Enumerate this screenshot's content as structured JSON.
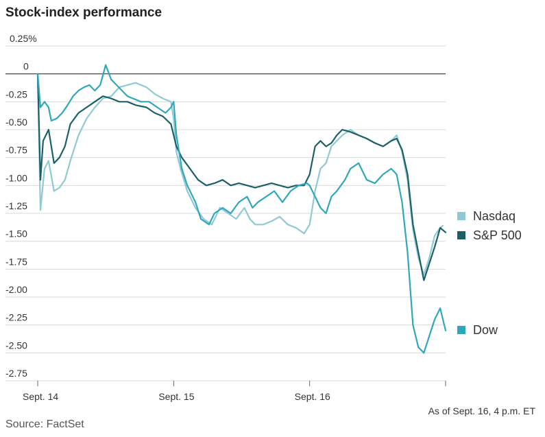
{
  "title": "Stock-index performance",
  "source": "Source: FactSet",
  "footnote": "As of Sept. 16, 4 p.m. ET",
  "chart_data": {
    "type": "line",
    "ylim": [
      -2.75,
      0.25
    ],
    "y_ticks": [
      0.25,
      0,
      -0.25,
      -0.5,
      -0.75,
      -1.0,
      -1.25,
      -1.5,
      -1.75,
      -2.0,
      -2.25,
      -2.5,
      -2.75
    ],
    "y_tick_labels": [
      "0.25%",
      "0",
      "-0.25",
      "-0.50",
      "-0.75",
      "-1.00",
      "-1.25",
      "-1.50",
      "-1.75",
      "-2.00",
      "-2.25",
      "-2.50",
      "-2.75"
    ],
    "xlim": [
      0,
      3
    ],
    "x_ticks": [
      0,
      1,
      2,
      3
    ],
    "x_tick_labels": [
      "Sept. 14",
      "Sept. 15",
      "Sept. 16",
      ""
    ],
    "legend_position": "right",
    "series": [
      {
        "name": "Nasdaq",
        "color": "#8fc9d4",
        "points": [
          [
            0,
            0
          ],
          [
            0.02,
            -1.22
          ],
          [
            0.05,
            -0.85
          ],
          [
            0.08,
            -0.78
          ],
          [
            0.12,
            -1.05
          ],
          [
            0.16,
            -1.02
          ],
          [
            0.2,
            -0.95
          ],
          [
            0.24,
            -0.78
          ],
          [
            0.3,
            -0.55
          ],
          [
            0.36,
            -0.4
          ],
          [
            0.42,
            -0.3
          ],
          [
            0.48,
            -0.22
          ],
          [
            0.54,
            -0.2
          ],
          [
            0.6,
            -0.12
          ],
          [
            0.66,
            -0.1
          ],
          [
            0.72,
            -0.08
          ],
          [
            0.8,
            -0.12
          ],
          [
            0.86,
            -0.18
          ],
          [
            0.92,
            -0.22
          ],
          [
            0.98,
            -0.25
          ],
          [
            1.0,
            -0.4
          ],
          [
            1.02,
            -0.7
          ],
          [
            1.05,
            -0.85
          ],
          [
            1.1,
            -1.05
          ],
          [
            1.16,
            -1.2
          ],
          [
            1.22,
            -1.3
          ],
          [
            1.28,
            -1.35
          ],
          [
            1.34,
            -1.2
          ],
          [
            1.4,
            -1.25
          ],
          [
            1.46,
            -1.3
          ],
          [
            1.52,
            -1.2
          ],
          [
            1.56,
            -1.3
          ],
          [
            1.6,
            -1.35
          ],
          [
            1.66,
            -1.35
          ],
          [
            1.72,
            -1.32
          ],
          [
            1.78,
            -1.28
          ],
          [
            1.84,
            -1.35
          ],
          [
            1.9,
            -1.38
          ],
          [
            1.96,
            -1.43
          ],
          [
            2.0,
            -1.35
          ],
          [
            2.04,
            -1.05
          ],
          [
            2.08,
            -0.85
          ],
          [
            2.12,
            -0.8
          ],
          [
            2.16,
            -0.65
          ],
          [
            2.2,
            -0.6
          ],
          [
            2.24,
            -0.55
          ],
          [
            2.3,
            -0.5
          ],
          [
            2.36,
            -0.55
          ],
          [
            2.42,
            -0.58
          ],
          [
            2.48,
            -0.62
          ],
          [
            2.54,
            -0.65
          ],
          [
            2.6,
            -0.6
          ],
          [
            2.64,
            -0.55
          ],
          [
            2.68,
            -0.7
          ],
          [
            2.72,
            -0.95
          ],
          [
            2.76,
            -1.4
          ],
          [
            2.8,
            -1.65
          ],
          [
            2.84,
            -1.8
          ],
          [
            2.88,
            -1.65
          ],
          [
            2.92,
            -1.45
          ],
          [
            2.96,
            -1.38
          ],
          [
            2.98,
            -1.36
          ]
        ]
      },
      {
        "name": "S&P 500",
        "color": "#1b5f69",
        "points": [
          [
            0,
            0
          ],
          [
            0.02,
            -0.95
          ],
          [
            0.04,
            -0.6
          ],
          [
            0.08,
            -0.5
          ],
          [
            0.12,
            -0.8
          ],
          [
            0.16,
            -0.75
          ],
          [
            0.2,
            -0.65
          ],
          [
            0.24,
            -0.45
          ],
          [
            0.3,
            -0.35
          ],
          [
            0.36,
            -0.3
          ],
          [
            0.42,
            -0.25
          ],
          [
            0.48,
            -0.2
          ],
          [
            0.54,
            -0.22
          ],
          [
            0.6,
            -0.25
          ],
          [
            0.66,
            -0.25
          ],
          [
            0.72,
            -0.28
          ],
          [
            0.8,
            -0.3
          ],
          [
            0.86,
            -0.35
          ],
          [
            0.92,
            -0.38
          ],
          [
            0.98,
            -0.45
          ],
          [
            1.0,
            -0.55
          ],
          [
            1.02,
            -0.65
          ],
          [
            1.06,
            -0.75
          ],
          [
            1.12,
            -0.85
          ],
          [
            1.18,
            -0.95
          ],
          [
            1.24,
            -1.0
          ],
          [
            1.3,
            -0.98
          ],
          [
            1.36,
            -0.95
          ],
          [
            1.42,
            -1.0
          ],
          [
            1.48,
            -0.98
          ],
          [
            1.54,
            -1.0
          ],
          [
            1.6,
            -1.02
          ],
          [
            1.66,
            -1.0
          ],
          [
            1.72,
            -0.98
          ],
          [
            1.78,
            -1.0
          ],
          [
            1.84,
            -1.02
          ],
          [
            1.9,
            -1.0
          ],
          [
            1.96,
            -1.0
          ],
          [
            2.0,
            -0.9
          ],
          [
            2.04,
            -0.65
          ],
          [
            2.08,
            -0.6
          ],
          [
            2.12,
            -0.65
          ],
          [
            2.16,
            -0.62
          ],
          [
            2.2,
            -0.55
          ],
          [
            2.24,
            -0.5
          ],
          [
            2.3,
            -0.52
          ],
          [
            2.36,
            -0.55
          ],
          [
            2.42,
            -0.58
          ],
          [
            2.48,
            -0.62
          ],
          [
            2.54,
            -0.65
          ],
          [
            2.6,
            -0.6
          ],
          [
            2.64,
            -0.58
          ],
          [
            2.68,
            -0.68
          ],
          [
            2.72,
            -0.9
          ],
          [
            2.76,
            -1.35
          ],
          [
            2.8,
            -1.6
          ],
          [
            2.84,
            -1.85
          ],
          [
            2.88,
            -1.7
          ],
          [
            2.92,
            -1.55
          ],
          [
            2.96,
            -1.38
          ],
          [
            3.0,
            -1.42
          ]
        ]
      },
      {
        "name": "Dow",
        "color": "#2ea7bd",
        "points": [
          [
            0,
            0
          ],
          [
            0.02,
            -0.3
          ],
          [
            0.05,
            -0.25
          ],
          [
            0.08,
            -0.3
          ],
          [
            0.1,
            -0.42
          ],
          [
            0.14,
            -0.4
          ],
          [
            0.18,
            -0.35
          ],
          [
            0.22,
            -0.28
          ],
          [
            0.26,
            -0.2
          ],
          [
            0.3,
            -0.15
          ],
          [
            0.34,
            -0.12
          ],
          [
            0.38,
            -0.1
          ],
          [
            0.42,
            -0.15
          ],
          [
            0.46,
            -0.1
          ],
          [
            0.5,
            0.08
          ],
          [
            0.54,
            -0.05
          ],
          [
            0.58,
            -0.1
          ],
          [
            0.62,
            -0.15
          ],
          [
            0.66,
            -0.2
          ],
          [
            0.7,
            -0.22
          ],
          [
            0.76,
            -0.25
          ],
          [
            0.82,
            -0.25
          ],
          [
            0.88,
            -0.3
          ],
          [
            0.94,
            -0.35
          ],
          [
            0.98,
            -0.3
          ],
          [
            1.0,
            -0.25
          ],
          [
            1.02,
            -0.55
          ],
          [
            1.06,
            -0.85
          ],
          [
            1.1,
            -1.0
          ],
          [
            1.16,
            -1.15
          ],
          [
            1.2,
            -1.3
          ],
          [
            1.26,
            -1.35
          ],
          [
            1.3,
            -1.25
          ],
          [
            1.36,
            -1.2
          ],
          [
            1.42,
            -1.25
          ],
          [
            1.48,
            -1.15
          ],
          [
            1.54,
            -1.1
          ],
          [
            1.58,
            -1.2
          ],
          [
            1.62,
            -1.15
          ],
          [
            1.68,
            -1.1
          ],
          [
            1.74,
            -1.05
          ],
          [
            1.8,
            -1.15
          ],
          [
            1.86,
            -1.05
          ],
          [
            1.92,
            -1.0
          ],
          [
            1.98,
            -0.98
          ],
          [
            2.0,
            -1.0
          ],
          [
            2.04,
            -1.1
          ],
          [
            2.08,
            -1.2
          ],
          [
            2.12,
            -1.25
          ],
          [
            2.16,
            -1.1
          ],
          [
            2.2,
            -1.05
          ],
          [
            2.26,
            -0.95
          ],
          [
            2.3,
            -0.85
          ],
          [
            2.36,
            -0.8
          ],
          [
            2.42,
            -0.95
          ],
          [
            2.48,
            -0.98
          ],
          [
            2.54,
            -0.9
          ],
          [
            2.6,
            -0.85
          ],
          [
            2.64,
            -0.9
          ],
          [
            2.68,
            -1.15
          ],
          [
            2.72,
            -1.6
          ],
          [
            2.76,
            -2.25
          ],
          [
            2.8,
            -2.45
          ],
          [
            2.84,
            -2.5
          ],
          [
            2.88,
            -2.35
          ],
          [
            2.92,
            -2.2
          ],
          [
            2.96,
            -2.1
          ],
          [
            3.0,
            -2.3
          ]
        ]
      }
    ]
  }
}
